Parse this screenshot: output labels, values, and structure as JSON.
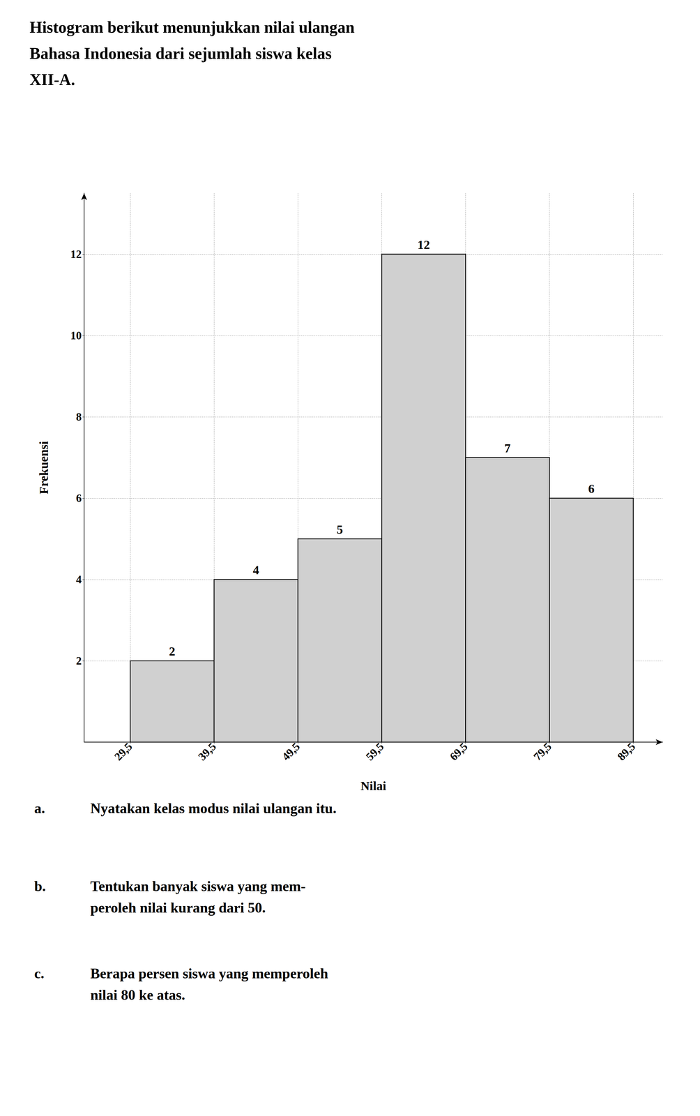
{
  "chart_data": {
    "type": "histogram",
    "title": "Histogram berikut menunjukkan nilai ulangan\nBahasa Indonesia dari sejumlah siswa kelas\nXII-A.",
    "x_label": "Nilai",
    "y_label": "Frekuensi",
    "bins": [
      29.5,
      39.5,
      49.5,
      59.5,
      69.5,
      79.5,
      89.5
    ],
    "values": [
      2,
      4,
      5,
      12,
      7,
      6
    ],
    "color": "#d0d0d0",
    "xlim": [
      24.0,
      93.0
    ],
    "xticks": [
      {
        "value": 29.5,
        "label": "29,5"
      },
      {
        "value": 39.5,
        "label": "39,5"
      },
      {
        "value": 49.5,
        "label": "49,5"
      },
      {
        "value": 59.5,
        "label": "59,5"
      },
      {
        "value": 69.5,
        "label": "69,5"
      },
      {
        "value": 79.5,
        "label": "79,5"
      },
      {
        "value": 89.5,
        "label": "89,5"
      }
    ],
    "ylim": [
      0,
      13.5
    ],
    "yticks": [
      2,
      4,
      6,
      8,
      10,
      12
    ],
    "grid": true,
    "data_labels": true,
    "annotations": [
      {
        "label": "a.",
        "text": "Nyatakan kelas modus nilai ulangan itu."
      },
      {
        "label": "b.",
        "text": "Tentukan banyak siswa yang mem-\nperoleh nilai kurang dari 50."
      },
      {
        "label": "c.",
        "text": "Berapa persen siswa yang memperoleh\nnilai 80 ke atas."
      }
    ]
  }
}
